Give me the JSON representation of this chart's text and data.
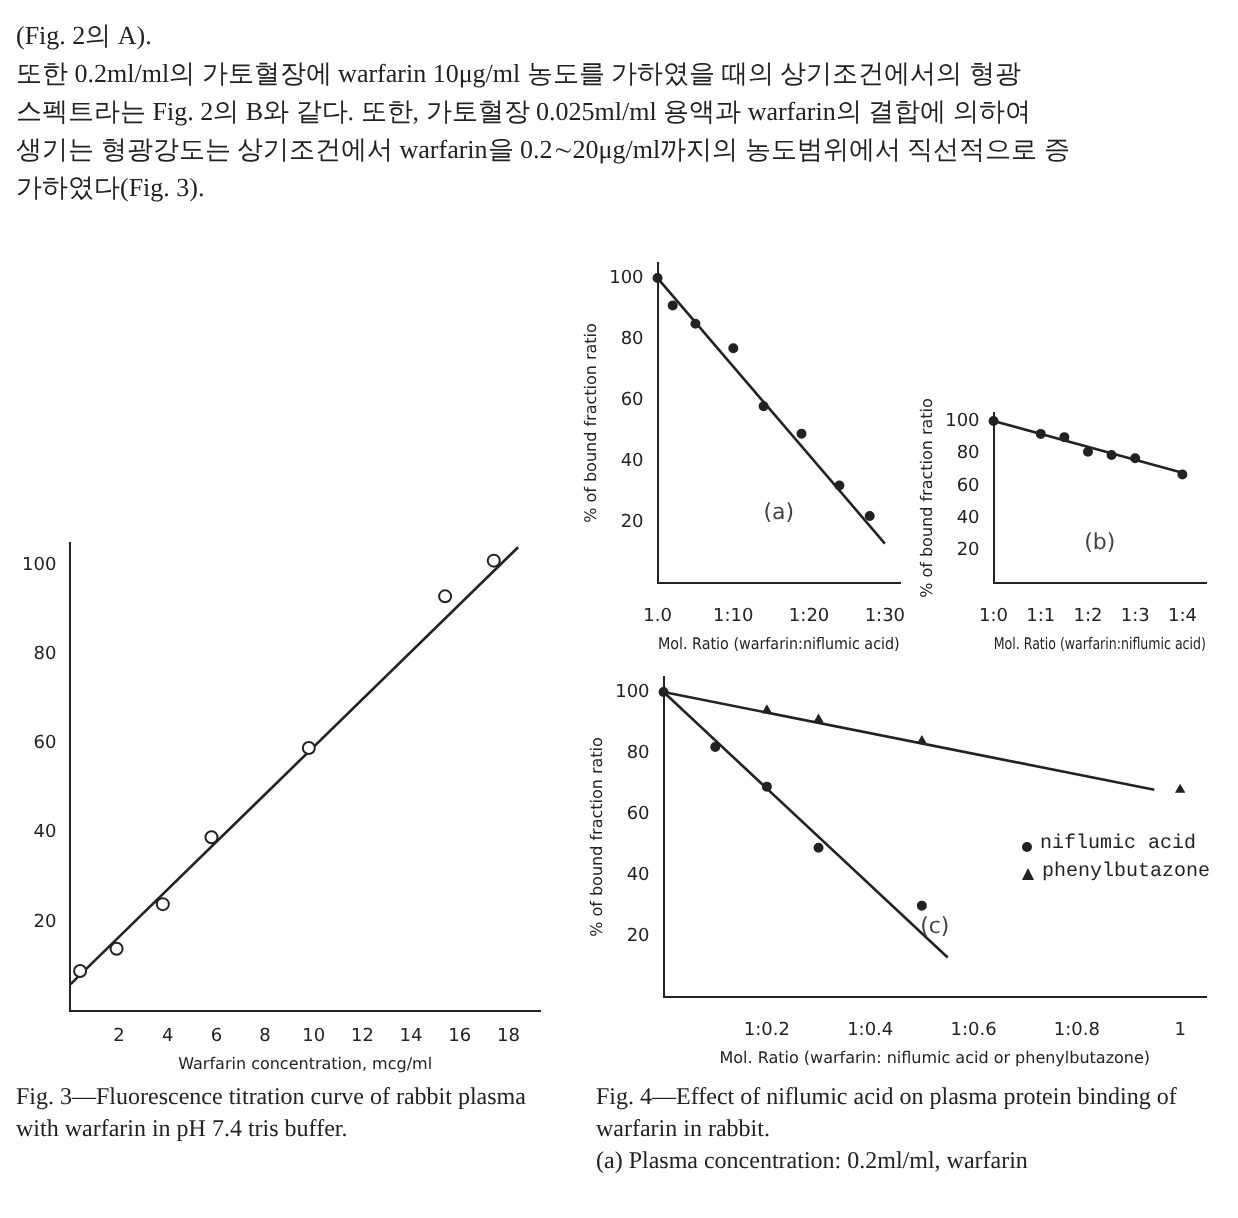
{
  "chart_data": [
    {
      "type": "scatter",
      "title": "Fig. 3—Fluorescence titration curve of rabbit plasma with warfarin in pH 7.4 tris buffer.",
      "xlabel": "Warfarin concentration, mcg/ml",
      "annotations": [
        "(Fig. 2의 A).",
        "또한 0.2ml/ml의 가토혈장에 warfarin 10μg/ml 농도를 가하였을 때의 상기조건에서의 형광",
        "스펙트라는 Fig. 2의 B와 같다. 또한, 가토혈장 0.025ml/ml 용액과 warfarin의 결합에 의하여",
        "생기는 형광강도는 상기조건에서 warfarin을 0.2∼20μg/ml까지의 농도범위에서 직선적으로 증",
        "가하였다(Fig. 3)."
      ],
      "xlim": [
        0,
        19.3
      ],
      "xticks": [
        2,
        4,
        6,
        8,
        10,
        12,
        14,
        16,
        18
      ],
      "ylim": [
        0,
        105
      ],
      "yticks": [
        20,
        40,
        60,
        80,
        100
      ],
      "series": [
        {
          "type": "scatter",
          "color": "#222222",
          "marker": "circle",
          "x": [
            0.4,
            1.9,
            3.8,
            5.8,
            9.8,
            15.4,
            17.4
          ],
          "values": [
            9,
            14,
            24,
            39,
            59,
            93,
            101
          ]
        },
        {
          "type": "line",
          "color": "#222222",
          "marker": "none",
          "x": [
            0,
            18.4
          ],
          "values": [
            6,
            104
          ]
        }
      ]
    },
    {
      "type": "scatter",
      "xlabel": "Mol. Ratio (warfarin:niflumic acid)",
      "ylabel": "% of bound fraction ratio",
      "annotations": [
        "(a)"
      ],
      "categories": [
        "1.0",
        null,
        null,
        null,
        null,
        null,
        null,
        null,
        null,
        null,
        "1:10",
        null,
        null,
        null,
        null,
        null,
        null,
        null,
        null,
        null,
        "1:20",
        null,
        null,
        null,
        null,
        null,
        null,
        null,
        null,
        null,
        "1:30",
        null,
        null
      ],
      "ylim": [
        0,
        105
      ],
      "yticks": [
        20,
        40,
        60,
        80,
        100
      ],
      "series": [
        {
          "type": "scatter",
          "color": "#222222",
          "marker": "circle",
          "values": [
            100,
            null,
            91,
            null,
            null,
            85,
            null,
            null,
            null,
            null,
            77,
            null,
            null,
            null,
            58,
            null,
            null,
            null,
            null,
            49,
            null,
            null,
            null,
            null,
            32,
            null,
            null,
            null,
            22,
            null,
            null,
            null,
            null
          ]
        },
        {
          "type": "line",
          "color": "#222222",
          "marker": "none",
          "values": [
            100,
            null,
            null,
            null,
            null,
            null,
            null,
            null,
            null,
            null,
            null,
            null,
            null,
            null,
            null,
            null,
            null,
            null,
            null,
            null,
            null,
            null,
            null,
            null,
            null,
            null,
            null,
            null,
            null,
            null,
            13,
            null,
            null
          ]
        }
      ]
    },
    {
      "type": "scatter",
      "xlabel": "Mol. Ratio (warfarin:niflumic acid)",
      "ylabel": "% of bound fraction ratio",
      "annotations": [
        "(b)"
      ],
      "categories": [
        "1:0",
        null,
        "1:1",
        null,
        "1:2",
        null,
        "1:3",
        null,
        "1:4",
        null
      ],
      "ylim": [
        0,
        105
      ],
      "yticks": [
        20,
        40,
        60,
        80,
        100
      ],
      "series": [
        {
          "type": "scatter",
          "color": "#222222",
          "marker": "circle",
          "values": [
            100,
            null,
            92,
            90,
            81,
            79,
            77,
            null,
            67,
            null
          ]
        },
        {
          "type": "line",
          "color": "#222222",
          "marker": "none",
          "values": [
            100,
            null,
            null,
            null,
            null,
            null,
            null,
            null,
            68,
            null
          ]
        }
      ]
    },
    {
      "type": "scatter",
      "xlabel": "Mol. Ratio (warfarin: niflumic acid or phenylbutazone)",
      "ylabel": "% of bound fraction ratio",
      "annotations": [
        "(c)",
        "Fig. 4—Effect of niflumic acid on plasma protein binding of warfarin in rabbit.",
        "(a) Plasma concentration: 0.2ml/ml, warfarin"
      ],
      "legend": "right",
      "categories": [
        null,
        null,
        null,
        null,
        "1:0.2",
        null,
        null,
        null,
        "1:0.4",
        null,
        null,
        null,
        "1:0.6",
        null,
        null,
        null,
        "1:0.8",
        null,
        null,
        null,
        "1",
        null
      ],
      "ylim": [
        0,
        105
      ],
      "yticks": [
        20,
        40,
        60,
        80,
        100
      ],
      "series": [
        {
          "type": "scatter",
          "name": "niflumic acid",
          "color": "#222222",
          "marker": "circle",
          "values": [
            100,
            null,
            82,
            null,
            69,
            null,
            49,
            null,
            null,
            null,
            30,
            null,
            null,
            null,
            null,
            null,
            null,
            null,
            null,
            null,
            null,
            null
          ]
        },
        {
          "type": "scatter",
          "name": "phenylbutazone",
          "color": "#222222",
          "marker": "triangle",
          "values": [
            null,
            null,
            null,
            null,
            94,
            null,
            91,
            null,
            null,
            null,
            84,
            null,
            null,
            null,
            null,
            null,
            null,
            null,
            null,
            null,
            68,
            null
          ]
        },
        {
          "type": "line",
          "color": "#222222",
          "marker": "none",
          "values": [
            100,
            null,
            null,
            null,
            null,
            null,
            null,
            null,
            null,
            null,
            null,
            13,
            null,
            null,
            null,
            null,
            null,
            null,
            null,
            null,
            null,
            null
          ]
        },
        {
          "type": "line",
          "color": "#222222",
          "marker": "none",
          "values": [
            100,
            null,
            null,
            null,
            null,
            null,
            null,
            null,
            null,
            null,
            null,
            null,
            null,
            null,
            null,
            null,
            null,
            null,
            null,
            68,
            null,
            null
          ]
        }
      ]
    }
  ]
}
